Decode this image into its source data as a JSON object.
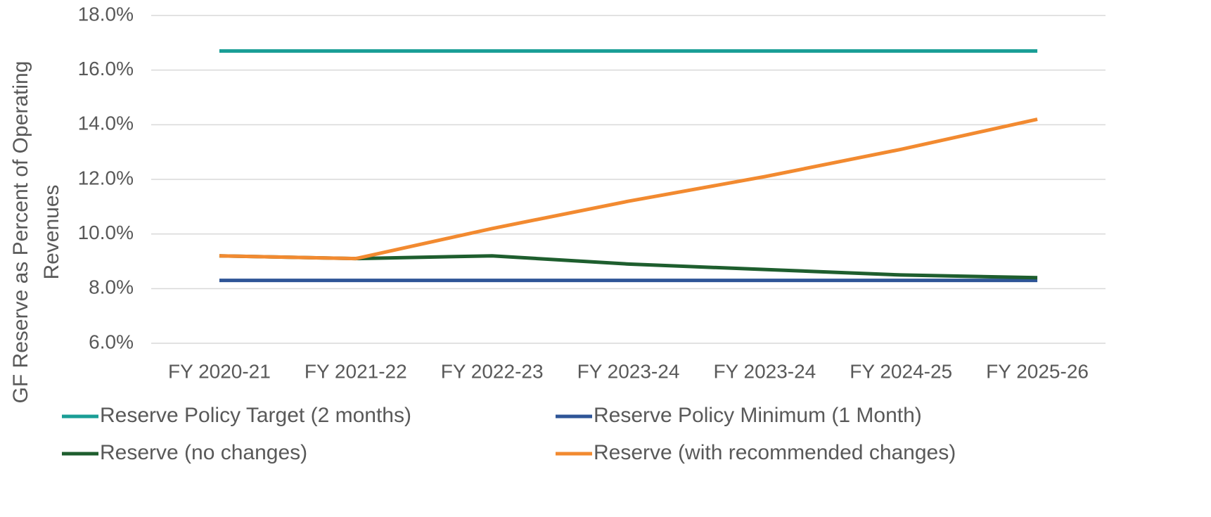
{
  "chart_data": {
    "type": "line",
    "y_label": "GF Reserve as Percent of Operating Revenues",
    "categories": [
      "FY 2020-21",
      "FY 2021-22",
      "FY 2022-23",
      "FY 2023-24",
      "FY 2023-24",
      "FY 2024-25",
      "FY 2025-26"
    ],
    "series": [
      {
        "name": "Reserve Policy Target (2 months)",
        "color": "#1a9e96",
        "values": [
          16.7,
          16.7,
          16.7,
          16.7,
          16.7,
          16.7,
          16.7
        ]
      },
      {
        "name": "Reserve Policy Minimum (1 Month)",
        "color": "#2e5597",
        "values": [
          8.3,
          8.3,
          8.3,
          8.3,
          8.3,
          8.3,
          8.3
        ]
      },
      {
        "name": "Reserve (no changes)",
        "color": "#1e5e2e",
        "values": [
          9.2,
          9.1,
          9.2,
          8.9,
          8.7,
          8.5,
          8.4
        ]
      },
      {
        "name": "Reserve (with recommended changes)",
        "color": "#f28a30",
        "values": [
          9.2,
          9.1,
          10.2,
          11.2,
          12.1,
          13.1,
          14.2
        ]
      }
    ],
    "ylim": [
      6,
      18
    ],
    "yticks": [
      {
        "value": 6,
        "label": "6.0%"
      },
      {
        "value": 8,
        "label": "8.0%"
      },
      {
        "value": 10,
        "label": "10.0%"
      },
      {
        "value": 12,
        "label": "12.0%"
      },
      {
        "value": 14,
        "label": "14.0%"
      },
      {
        "value": 16,
        "label": "16.0%"
      },
      {
        "value": 18,
        "label": "18.0%"
      }
    ],
    "grid": true,
    "legend": "bottom"
  }
}
